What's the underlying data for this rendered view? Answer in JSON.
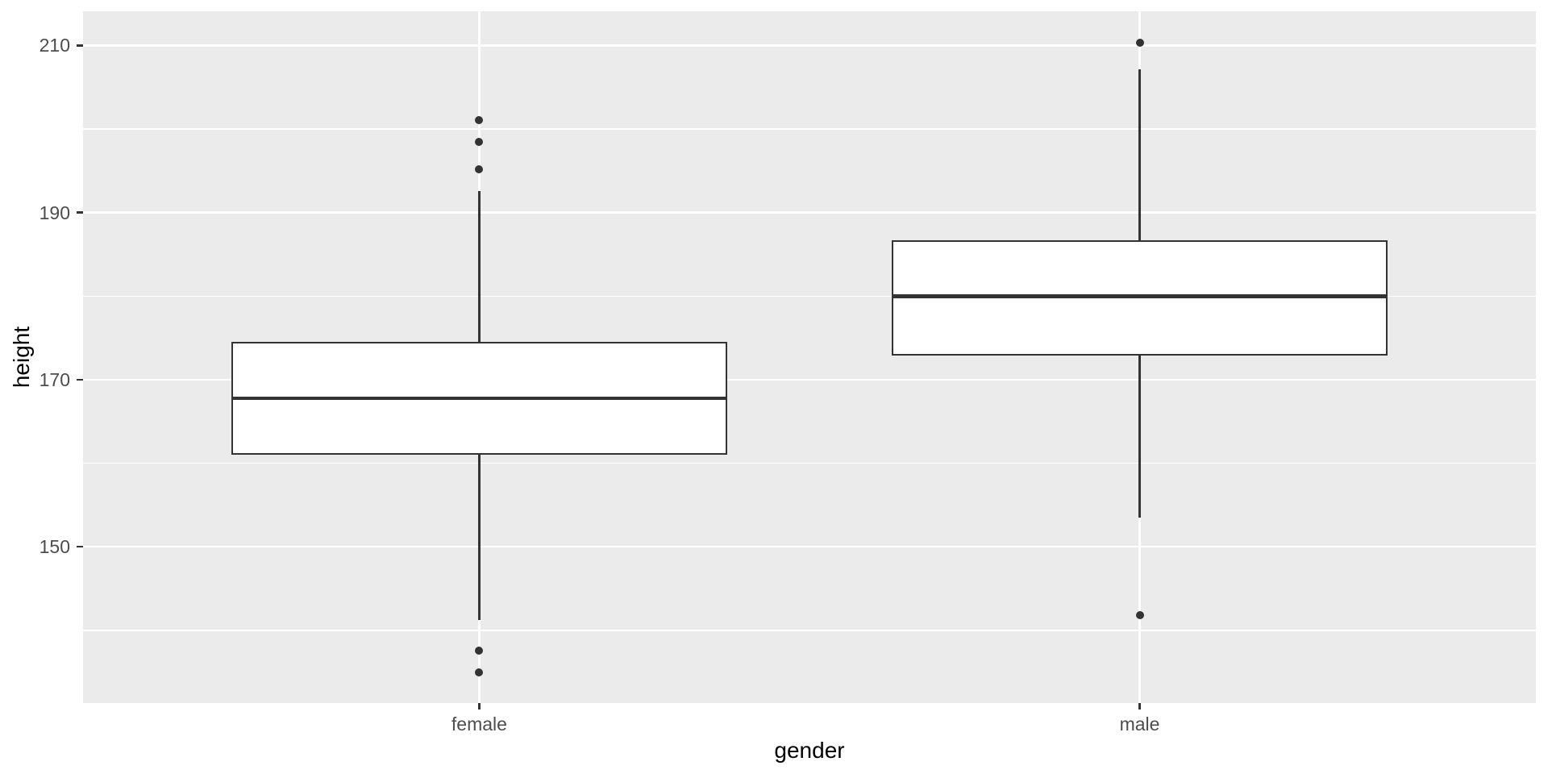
{
  "figure": {
    "background": "#FFFFFF"
  },
  "chart_data": {
    "type": "boxplot",
    "title": "",
    "xlabel": "gender",
    "ylabel": "height",
    "categories": [
      "female",
      "male"
    ],
    "y_axis": {
      "major_ticks": [
        210,
        190,
        170,
        150
      ],
      "minor_gridlines": [
        200,
        180,
        160,
        140
      ],
      "range": [
        131.3,
        214.1
      ]
    },
    "series": [
      {
        "category": "female",
        "whisker_min": 141.2,
        "q1": 161.0,
        "median": 167.8,
        "q3": 174.5,
        "whisker_max": 192.6,
        "outliers": [
          201.1,
          198.5,
          195.2,
          137.6,
          135.0
        ]
      },
      {
        "category": "male",
        "whisker_min": 153.5,
        "q1": 172.9,
        "median": 180.0,
        "q3": 186.7,
        "whisker_max": 207.2,
        "outliers": [
          210.3,
          141.8
        ]
      }
    ],
    "style": {
      "panel_background": "#EBEBEB",
      "gridline_color": "#FFFFFF",
      "box_outline": "#333333",
      "box_fill": "#FFFFFF",
      "outlier_color": "#333333",
      "tick_label_color": "#4D4D4D",
      "axis_title_color": "#000000",
      "legend": "none"
    }
  }
}
